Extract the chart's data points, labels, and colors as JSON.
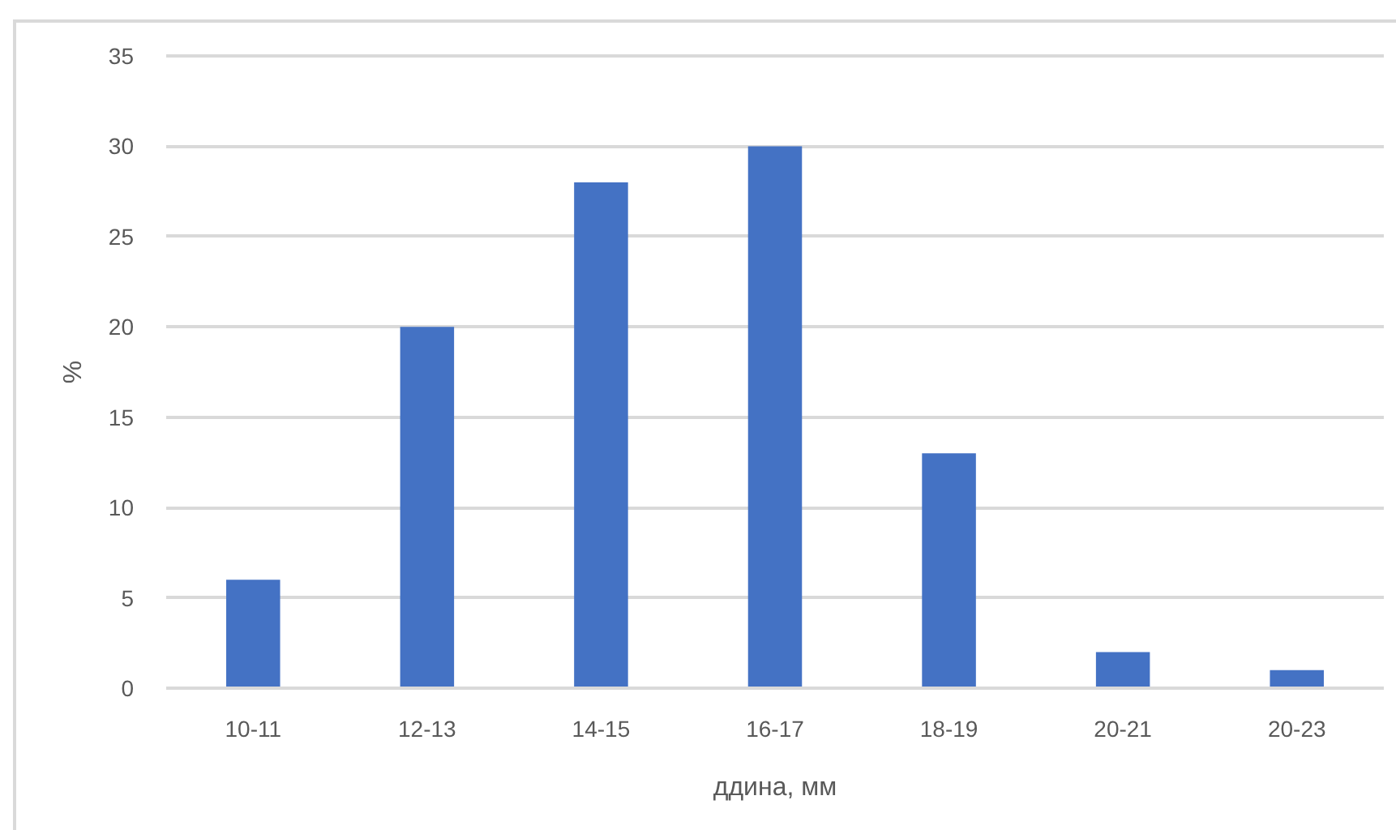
{
  "chart_data": {
    "type": "bar",
    "xlabel": "ддина, мм",
    "ylabel": "%",
    "categories": [
      "10-11",
      "12-13",
      "14-15",
      "16-17",
      "18-19",
      "20-21",
      "20-23"
    ],
    "values": [
      6,
      20,
      28,
      30,
      13,
      2,
      1
    ],
    "color": "#4472c4",
    "ylim": [
      0,
      35
    ],
    "yticks": [
      0,
      5,
      10,
      15,
      20,
      25,
      30,
      35
    ],
    "grid": "y"
  }
}
